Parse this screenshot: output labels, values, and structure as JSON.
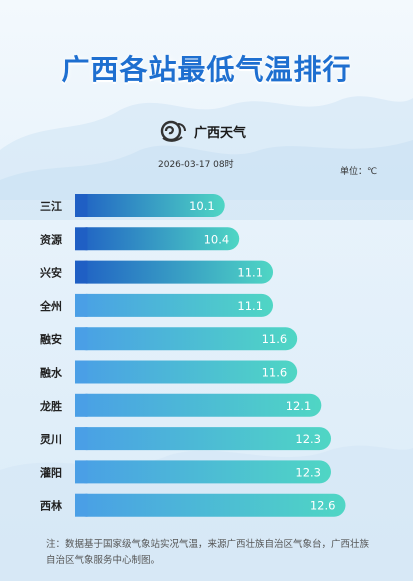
{
  "header": {
    "title": "广西各站最低气温排行",
    "logo_text": "广西天气",
    "logo_icon": "guangxi-weather-logo-icon",
    "timestamp": "2026-03-17 08时",
    "unit": "单位：℃"
  },
  "footnote": "注：数据基于国家级气象站实况气温，来源广西壮族自治区气象台，广西壮族自治区气象服务中心制图。",
  "colors": {
    "title": "#1e6fd0",
    "bar_dark_start": "#1f5fc4",
    "bar_light_start": "#4a9fe6",
    "bar_end": "#4fd6c4"
  },
  "chart_data": {
    "type": "bar",
    "orientation": "horizontal",
    "categories": [
      "三江",
      "资源",
      "兴安",
      "全州",
      "融安",
      "融水",
      "龙胜",
      "灵川",
      "灌阳",
      "西林"
    ],
    "values": [
      10.1,
      10.4,
      11.1,
      11.1,
      11.6,
      11.6,
      12.1,
      12.3,
      12.3,
      12.6
    ],
    "data_labels": [
      "10.1",
      "10.4",
      "11.1",
      "11.1",
      "11.6",
      "11.6",
      "12.1",
      "12.3",
      "12.3",
      "12.6"
    ],
    "title": "广西各站最低气温排行",
    "xlabel": "",
    "ylabel": "",
    "unit": "℃",
    "grid": false,
    "legend": "none"
  }
}
